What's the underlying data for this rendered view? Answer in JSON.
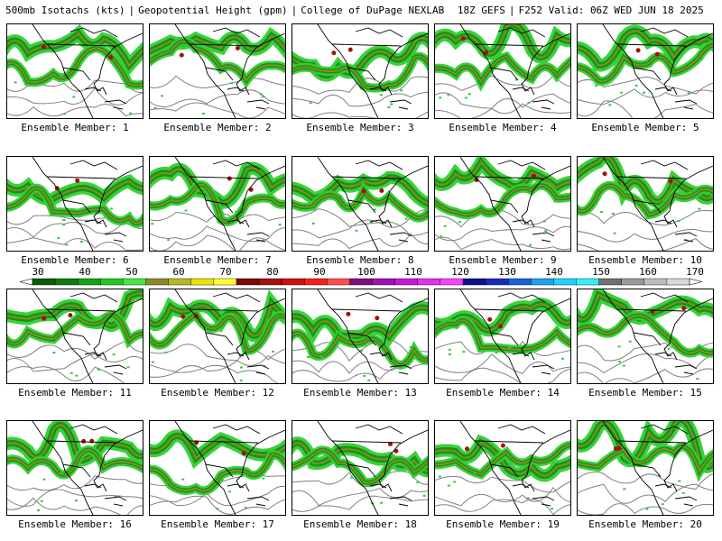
{
  "header": {
    "product": "500mb Isotachs (kts)",
    "overlay": "Geopotential Height (gpm)",
    "source": "College of DuPage NEXLAB",
    "run": "18Z GEFS",
    "valid": "F252 Valid: 06Z WED JUN 18 2025"
  },
  "members": [
    {
      "label": "Ensemble Member: 1"
    },
    {
      "label": "Ensemble Member: 2"
    },
    {
      "label": "Ensemble Member: 3"
    },
    {
      "label": "Ensemble Member: 4"
    },
    {
      "label": "Ensemble Member: 5"
    },
    {
      "label": "Ensemble Member: 6"
    },
    {
      "label": "Ensemble Member: 7"
    },
    {
      "label": "Ensemble Member: 8"
    },
    {
      "label": "Ensemble Member: 9"
    },
    {
      "label": "Ensemble Member: 10"
    },
    {
      "label": "Ensemble Member: 11"
    },
    {
      "label": "Ensemble Member: 12"
    },
    {
      "label": "Ensemble Member: 13"
    },
    {
      "label": "Ensemble Member: 14"
    },
    {
      "label": "Ensemble Member: 15"
    },
    {
      "label": "Ensemble Member: 16"
    },
    {
      "label": "Ensemble Member: 17"
    },
    {
      "label": "Ensemble Member: 18"
    },
    {
      "label": "Ensemble Member: 19"
    },
    {
      "label": "Ensemble Member: 20"
    }
  ],
  "colorbar": {
    "ticks": [
      "30",
      "40",
      "50",
      "60",
      "70",
      "80",
      "90",
      "100",
      "110",
      "120",
      "130",
      "140",
      "150",
      "160",
      "170"
    ],
    "colors": [
      "#0a5a0a",
      "#0f7a0f",
      "#18a018",
      "#22c822",
      "#44e844",
      "#8a8a28",
      "#b8b820",
      "#e6e600",
      "#ffff33",
      "#7a0a0a",
      "#a50f0f",
      "#cc1010",
      "#ff1a1a",
      "#ff4d4d",
      "#7a1080",
      "#a010b0",
      "#c818d8",
      "#e030f0",
      "#ff40ff",
      "#10108a",
      "#1a2ac0",
      "#1a60e0",
      "#20a0f0",
      "#20d0ff",
      "#30f0ff",
      "#707070",
      "#9a9a9a",
      "#bcbcbc",
      "#d8d8d8"
    ]
  },
  "map_style": {
    "jet_outer": "#33cc33",
    "jet_inner": "#149614",
    "jet_core": "#8a8a28",
    "jet_max": "#a50f0f",
    "height_contour": "#808080",
    "coastline": "#000000"
  }
}
